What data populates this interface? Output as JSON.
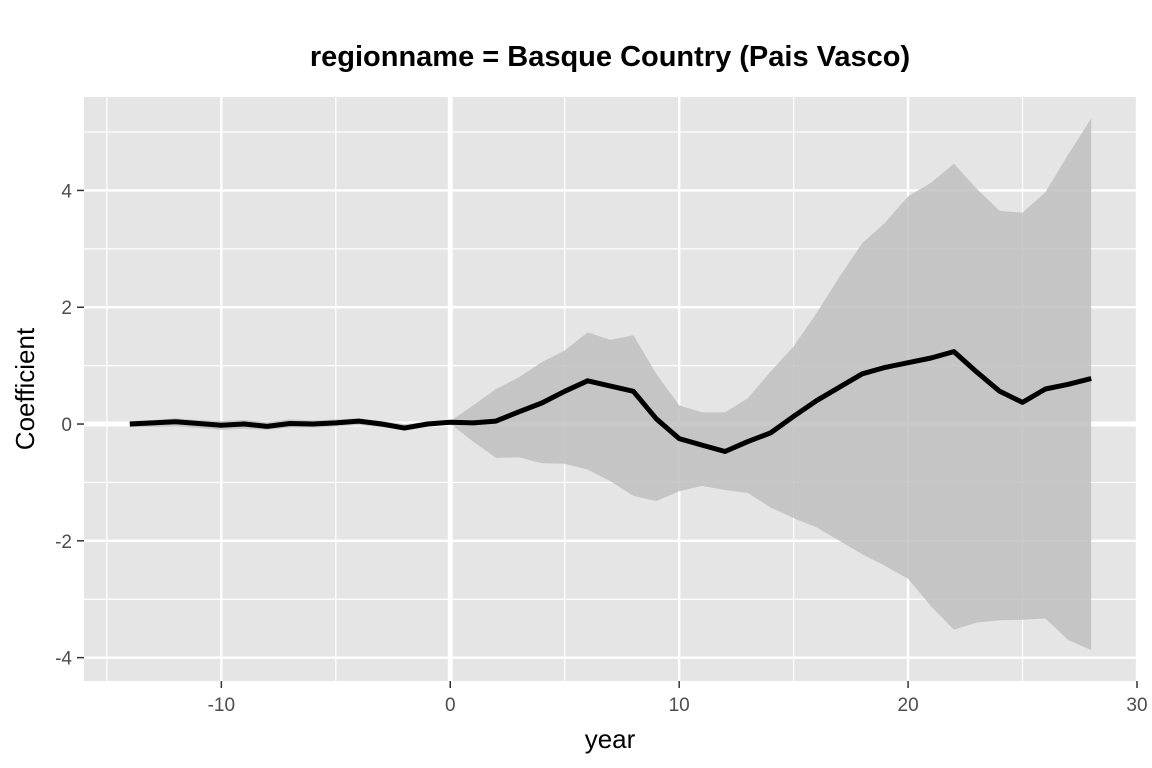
{
  "chart_data": {
    "type": "line",
    "title": "regionname = Basque Country (Pais Vasco)",
    "xlabel": "year",
    "ylabel": "Coefficient",
    "xlim": [
      -16,
      30
    ],
    "ylim": [
      -4.4,
      5.6
    ],
    "x_ticks": [
      -10,
      0,
      10,
      20,
      30
    ],
    "y_ticks": [
      -4,
      -2,
      0,
      2,
      4
    ],
    "reference_lines": {
      "x": 0,
      "y": 0
    },
    "grid": true,
    "legend": "none",
    "colors": {
      "panel": "#e5e5e5",
      "gridline": "#ffffff",
      "ribbon": "#bfbfbf",
      "line": "#000000"
    },
    "series": [
      {
        "x": [
          -14,
          -13,
          -12,
          -11,
          -10,
          -9,
          -8,
          -7,
          -6,
          -5,
          -4,
          -3,
          -2,
          -1,
          0,
          1,
          2,
          3,
          4,
          5,
          6,
          7,
          8,
          9,
          10,
          11,
          12,
          13,
          14,
          15,
          16,
          17,
          18,
          19,
          20,
          21,
          22,
          23,
          24,
          25,
          26,
          27,
          28
        ],
        "y": [
          0.0,
          0.02,
          0.04,
          0.01,
          -0.02,
          0.0,
          -0.04,
          0.01,
          0.0,
          0.02,
          0.05,
          0.0,
          -0.07,
          0.0,
          0.03,
          0.02,
          0.05,
          0.21,
          0.36,
          0.56,
          0.74,
          0.65,
          0.56,
          0.09,
          -0.25,
          -0.36,
          -0.47,
          -0.3,
          -0.15,
          0.13,
          0.4,
          0.63,
          0.86,
          0.97,
          1.05,
          1.13,
          1.24,
          0.89,
          0.56,
          0.37,
          0.6,
          0.68,
          0.78
        ],
        "lower": [
          -0.05,
          -0.05,
          -0.04,
          -0.07,
          -0.1,
          -0.08,
          -0.1,
          -0.06,
          -0.06,
          -0.04,
          -0.02,
          -0.05,
          -0.09,
          -0.03,
          0.01,
          -0.3,
          -0.58,
          -0.57,
          -0.67,
          -0.68,
          -0.78,
          -0.98,
          -1.23,
          -1.32,
          -1.15,
          -1.06,
          -1.13,
          -1.18,
          -1.43,
          -1.61,
          -1.77,
          -2.0,
          -2.23,
          -2.43,
          -2.65,
          -3.12,
          -3.52,
          -3.4,
          -3.36,
          -3.35,
          -3.33,
          -3.7,
          -3.87
        ],
        "upper": [
          0.05,
          0.07,
          0.1,
          0.07,
          0.05,
          0.07,
          0.03,
          0.08,
          0.06,
          0.08,
          0.1,
          0.05,
          0.0,
          0.03,
          0.05,
          0.32,
          0.6,
          0.8,
          1.06,
          1.26,
          1.57,
          1.44,
          1.52,
          0.86,
          0.32,
          0.2,
          0.2,
          0.44,
          0.9,
          1.33,
          1.9,
          2.52,
          3.1,
          3.45,
          3.9,
          4.13,
          4.46,
          4.03,
          3.65,
          3.62,
          3.97,
          4.62,
          5.23
        ]
      }
    ]
  }
}
